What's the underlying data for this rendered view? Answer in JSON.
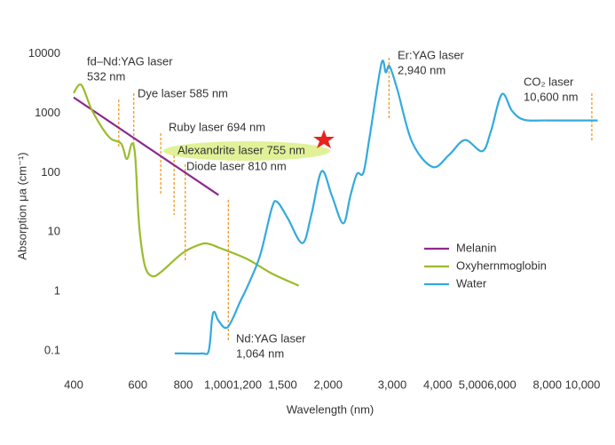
{
  "chart_data": {
    "type": "line",
    "xlabel": "Wavelength (nm)",
    "ylabel": "Absorption μa (cm⁻¹)",
    "xscale": "log",
    "yscale": "log",
    "xlim": [
      400,
      11800
    ],
    "ylim": [
      0.05,
      15000
    ],
    "xticks": [
      400,
      600,
      800,
      {
        "value": 1000,
        "label": "1,000"
      },
      {
        "value": 1200,
        "label": "1,200"
      },
      {
        "value": 1500,
        "label": "1,500"
      },
      {
        "value": 2000,
        "label": "2,000"
      },
      {
        "value": 3000,
        "label": "3,000"
      },
      {
        "value": 4000,
        "label": "4,000"
      },
      {
        "value": 5000,
        "label": "5,000"
      },
      {
        "value": 6000,
        "label": "6,000"
      },
      {
        "value": 8000,
        "label": "8,000"
      },
      {
        "value": 10000,
        "label": "10,000"
      }
    ],
    "yticks": [
      0.1,
      1,
      10,
      100,
      1000,
      10000
    ],
    "grid": false,
    "legend": "lower right",
    "series": [
      {
        "name": "Melanin",
        "color": "#8e2a8e",
        "x": [
          400,
          1000
        ],
        "values": [
          1850,
          42
        ]
      },
      {
        "name": "Oxyhernmoglobin",
        "color": "#9bbb2c",
        "x": [
          400,
          420,
          450,
          500,
          540,
          560,
          578,
          590,
          600,
          610,
          630,
          660,
          700,
          800,
          900,
          950,
          1000,
          1200,
          1400,
          1660
        ],
        "values": [
          2200,
          3000,
          1100,
          400,
          310,
          170,
          310,
          200,
          30,
          8,
          2.5,
          1.8,
          2.2,
          4.5,
          6.3,
          6.2,
          5.5,
          3.5,
          2,
          1.25
        ]
      },
      {
        "name": "Water",
        "color": "#33aadd",
        "x": [
          758,
          800,
          900,
          940,
          960,
          975,
          1000,
          1060,
          1150,
          1200,
          1300,
          1400,
          1450,
          1550,
          1700,
          1800,
          1920,
          2050,
          2200,
          2300,
          2400,
          2500,
          2600,
          2800,
          2880,
          2950,
          3100,
          3400,
          3870,
          4300,
          4750,
          5300,
          5600,
          6000,
          6400,
          6900,
          8000,
          11000
        ],
        "values": [
          0.09,
          0.09,
          0.09,
          0.1,
          0.35,
          0.45,
          0.32,
          0.25,
          0.7,
          1.2,
          4,
          25,
          32,
          17,
          6.5,
          20,
          106,
          40,
          14,
          40,
          95,
          100,
          400,
          6800,
          4900,
          6200,
          2500,
          330,
          125,
          200,
          355,
          230,
          500,
          2100,
          1100,
          780,
          760,
          760
        ]
      }
    ],
    "annotations": [
      {
        "lines": [
          "fd–Nd:YAG laser",
          "532 nm"
        ],
        "x": 532
      },
      {
        "lines": [
          "Dye laser 585 nm"
        ],
        "x": 585
      },
      {
        "lines": [
          "Ruby laser 694 nm"
        ],
        "x": 694
      },
      {
        "lines": [
          "Alexandrite laser 755 nm"
        ],
        "x": 755
      },
      {
        "lines": [
          "Diode laser 810 nm"
        ],
        "x": 810
      },
      {
        "lines": [
          "Nd:YAG laser",
          "1,064 nm"
        ],
        "x": 1064
      },
      {
        "lines": [
          "Er:YAG laser",
          "2,940 nm"
        ],
        "x": 2940
      },
      {
        "lines": [
          "CO₂ laser",
          "10,600 nm"
        ],
        "x": 10600
      }
    ]
  }
}
